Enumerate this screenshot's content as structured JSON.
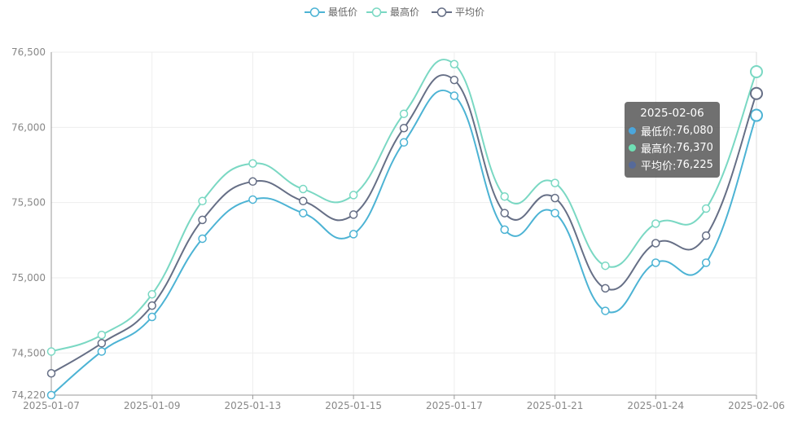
{
  "chart_data": {
    "type": "line",
    "smooth": true,
    "x": [
      "2025-01-07",
      "2025-01-08",
      "2025-01-09",
      "2025-01-10",
      "2025-01-13",
      "2025-01-14",
      "2025-01-15",
      "2025-01-16",
      "2025-01-17",
      "2025-01-20",
      "2025-01-21",
      "2025-01-22",
      "2025-01-24",
      "2025-01-25",
      "2025-02-06"
    ],
    "x_tick_labels": [
      "2025-01-07",
      "2025-01-09",
      "2025-01-13",
      "2025-01-15",
      "2025-01-17",
      "2025-01-21",
      "2025-01-24",
      "2025-02-06"
    ],
    "y_tick_labels": [
      "74,220",
      "74,500",
      "75,000",
      "75,500",
      "76,000",
      "76,500"
    ],
    "y_ticks": [
      74220,
      74500,
      75000,
      75500,
      76000,
      76500
    ],
    "ylim": [
      74220,
      76500
    ],
    "grid": true,
    "legend_position": "top-center",
    "series": [
      {
        "name": "最低价",
        "color": "#4cb3d4",
        "values": [
          74220,
          74510,
          74740,
          75260,
          75520,
          75430,
          75290,
          75900,
          76210,
          75320,
          75430,
          74780,
          75100,
          75100,
          76080
        ]
      },
      {
        "name": "最高价",
        "color": "#7ad8c3",
        "values": [
          74510,
          74620,
          74890,
          75510,
          75760,
          75590,
          75550,
          76090,
          76420,
          75540,
          75630,
          75080,
          75360,
          75460,
          76370
        ]
      },
      {
        "name": "平均价",
        "color": "#666f86",
        "values": [
          74365,
          74565,
          74815,
          75385,
          75640,
          75510,
          75420,
          75995,
          76315,
          75430,
          75530,
          74930,
          75230,
          75280,
          76225
        ]
      }
    ]
  },
  "tooltip": {
    "title": "2025-02-06",
    "rows": [
      {
        "label": "最低价:",
        "value": "76,080",
        "color": "#4ba6dc"
      },
      {
        "label": "最高价:",
        "value": "76,370",
        "color": "#6fe0b5"
      },
      {
        "label": "平均价:",
        "value": "76,225",
        "color": "#566a9a"
      }
    ]
  }
}
